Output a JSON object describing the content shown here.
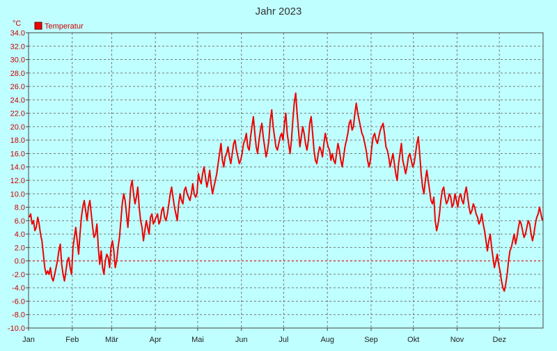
{
  "chart_data": {
    "type": "line",
    "title": "Jahr 2023",
    "yunit": "°C",
    "legend": [
      {
        "label": "Temperatur",
        "color": "#ee0000"
      }
    ],
    "legend_position": "top-left",
    "ylim": [
      -10,
      34
    ],
    "ytick_step": 2,
    "ytick_labels": [
      "34.0",
      "32.0",
      "30.0",
      "28.0",
      "26.0",
      "24.0",
      "22.0",
      "20.0",
      "18.0",
      "16.0",
      "14.0",
      "12.0",
      "10.0",
      "8.0",
      "6.0",
      "4.0",
      "2.0",
      "0.0",
      "-2.0",
      "-4.0",
      "-6.0",
      "-8.0",
      "-10.0"
    ],
    "x_categories": [
      "Jan",
      "Feb",
      "Mär",
      "Apr",
      "Mai",
      "Jun",
      "Jul",
      "Aug",
      "Sep",
      "Okt",
      "Nov",
      "Dez"
    ],
    "grid": true,
    "series": [
      {
        "name": "Temperatur",
        "color": "#ee0000",
        "monthly_daily_mean": [
          [
            6.5,
            7.0,
            5.5,
            6.0,
            4.5,
            5.0,
            6.5,
            5.5,
            4.0,
            3.0,
            1.0,
            -1.0,
            -2.0,
            -1.5,
            -2.0,
            -1.0,
            -2.5,
            -3.0,
            -2.0,
            -1.0,
            0.0,
            1.5,
            2.5,
            -0.5,
            -2.0,
            -3.0,
            -1.5,
            0.0,
            0.5,
            -1.0,
            -2.0
          ],
          [
            2.0,
            3.5,
            5.0,
            3.0,
            1.0,
            4.0,
            6.5,
            8.0,
            9.0,
            7.5,
            6.0,
            8.0,
            9.0,
            7.0,
            5.0,
            3.5,
            4.0,
            5.5,
            2.0,
            -0.5,
            1.5,
            -1.0,
            -2.0,
            0.0,
            1.0,
            0.5,
            -1.0,
            2.0
          ],
          [
            3.0,
            1.5,
            -1.0,
            0.0,
            2.0,
            3.5,
            6.0,
            8.5,
            10.0,
            9.0,
            7.0,
            5.0,
            8.0,
            11.0,
            12.0,
            10.0,
            8.5,
            9.5,
            11.0,
            8.0,
            6.0,
            5.0,
            3.0,
            4.5,
            6.0,
            5.0,
            4.0,
            6.5,
            7.0,
            5.5,
            6.0
          ],
          [
            6.5,
            7.0,
            5.5,
            6.0,
            7.5,
            8.0,
            6.5,
            6.0,
            7.0,
            8.5,
            10.0,
            11.0,
            9.5,
            8.0,
            7.0,
            6.0,
            8.5,
            10.0,
            9.0,
            8.5,
            10.5,
            11.0,
            10.0,
            9.5,
            9.0,
            10.0,
            11.5,
            10.0,
            9.5,
            10.0
          ],
          [
            13.0,
            12.0,
            11.5,
            13.0,
            14.0,
            12.5,
            11.0,
            12.0,
            13.5,
            11.5,
            10.0,
            11.0,
            12.0,
            13.0,
            14.5,
            16.0,
            17.5,
            15.0,
            14.0,
            15.5,
            16.0,
            17.0,
            15.5,
            14.5,
            16.0,
            17.5,
            18.0,
            16.5,
            15.5,
            14.5,
            15.0
          ],
          [
            16.0,
            17.5,
            18.0,
            19.0,
            17.0,
            16.5,
            18.5,
            20.0,
            21.5,
            19.0,
            17.0,
            16.0,
            18.0,
            19.5,
            20.5,
            18.5,
            17.0,
            15.5,
            16.5,
            18.0,
            21.0,
            22.5,
            20.0,
            18.5,
            17.0,
            16.5,
            17.5,
            18.5,
            19.0,
            18.0
          ],
          [
            20.5,
            22.0,
            19.0,
            17.5,
            16.0,
            18.0,
            21.0,
            23.5,
            25.0,
            22.0,
            19.5,
            17.0,
            18.5,
            20.0,
            19.0,
            17.5,
            16.5,
            18.0,
            20.5,
            21.5,
            19.0,
            16.5,
            15.0,
            14.5,
            16.0,
            17.0,
            16.5,
            15.5,
            17.5,
            19.0,
            18.0
          ],
          [
            17.0,
            16.5,
            15.0,
            16.0,
            15.0,
            14.5,
            16.0,
            17.5,
            16.5,
            15.0,
            14.0,
            15.5,
            17.0,
            18.0,
            19.0,
            20.5,
            21.0,
            19.5,
            20.0,
            22.0,
            23.5,
            22.0,
            21.0,
            20.0,
            19.0,
            18.5,
            17.5,
            16.5,
            15.0,
            14.0,
            15.0
          ],
          [
            17.0,
            18.5,
            19.0,
            18.0,
            17.5,
            18.5,
            19.5,
            20.0,
            20.5,
            19.0,
            17.0,
            16.5,
            15.5,
            14.0,
            15.0,
            16.0,
            14.5,
            13.0,
            12.0,
            14.5,
            16.0,
            17.5,
            15.0,
            14.0,
            13.0,
            14.0,
            15.5,
            16.0,
            15.0,
            14.0
          ],
          [
            14.5,
            16.0,
            17.5,
            18.5,
            16.0,
            13.0,
            11.0,
            10.0,
            12.0,
            13.5,
            12.0,
            10.5,
            9.0,
            8.5,
            9.5,
            6.0,
            4.5,
            5.5,
            7.0,
            9.0,
            10.5,
            11.0,
            9.5,
            8.5,
            9.0,
            10.0,
            9.5,
            8.0,
            8.5,
            10.0,
            9.0
          ],
          [
            8.0,
            9.5,
            10.0,
            9.0,
            8.5,
            10.0,
            11.0,
            9.5,
            8.0,
            7.0,
            7.5,
            8.5,
            8.0,
            7.0,
            6.5,
            5.5,
            6.0,
            7.0,
            5.5,
            4.5,
            3.0,
            1.5,
            3.0,
            4.0,
            2.0,
            0.5,
            -1.0,
            0.0,
            1.0,
            -0.5
          ],
          [
            -1.5,
            -3.0,
            -4.0,
            -4.5,
            -3.5,
            -2.0,
            0.0,
            1.5,
            2.0,
            3.0,
            4.0,
            2.5,
            3.5,
            5.0,
            6.0,
            5.5,
            4.5,
            3.5,
            4.0,
            5.0,
            6.0,
            5.5,
            4.0,
            3.0,
            4.0,
            5.5,
            6.5,
            7.0,
            8.0,
            7.0,
            6.0
          ]
        ]
      }
    ]
  }
}
